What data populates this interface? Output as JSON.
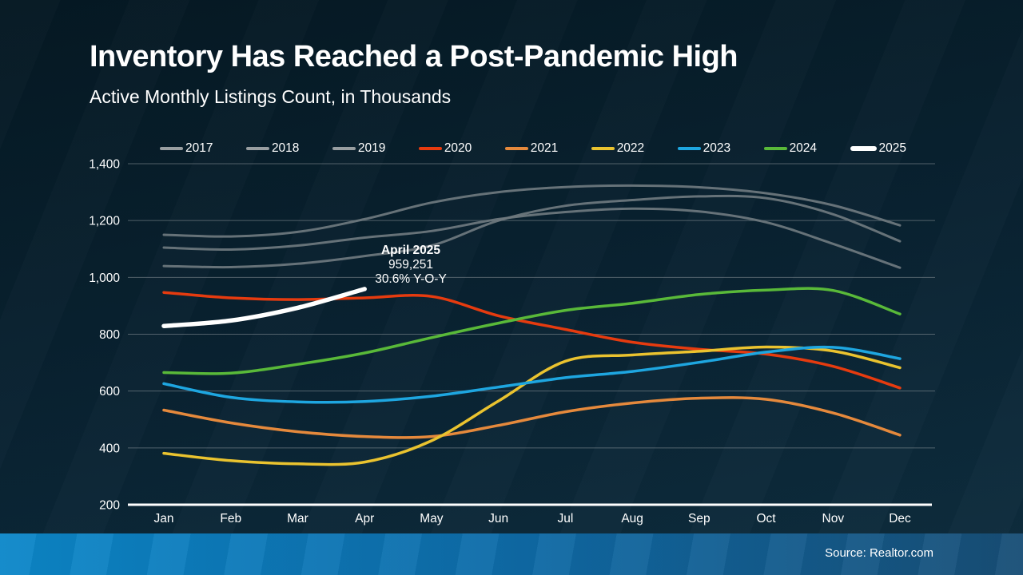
{
  "header": {
    "title": "Inventory Has Reached a Post-Pandemic High",
    "subtitle": "Active Monthly Listings Count, in Thousands"
  },
  "annotation": {
    "title": "April 2025",
    "value": "959,251",
    "yoy": "30.6% Y-O-Y"
  },
  "footer": {
    "source": "Source: Realtor.com"
  },
  "colors": {
    "background_top": "#051823",
    "background_bottom": "#0e2d3e",
    "footer_bar_left": "#0c87c9",
    "footer_bar_right": "#184e76",
    "gridline": "#99a0a5",
    "axis_line": "#ffffff",
    "text": "#ffffff"
  },
  "chart_data": {
    "type": "line",
    "title": "Active Monthly Listings Count, in Thousands",
    "units": "thousands",
    "categories": [
      "Jan",
      "Feb",
      "Mar",
      "Apr",
      "May",
      "Jun",
      "Jul",
      "Aug",
      "Sep",
      "Oct",
      "Nov",
      "Dec"
    ],
    "ylim": [
      200,
      1400
    ],
    "yticks": [
      1400,
      1200,
      1000,
      800,
      600,
      400,
      200
    ],
    "ytick_labels": [
      "1,400",
      "1,200",
      "1,000",
      "800",
      "600",
      "400",
      "200"
    ],
    "grid": true,
    "legend_position": "top",
    "annotation_point": {
      "series": "2025",
      "month": "Apr",
      "value": 959.251
    },
    "series": [
      {
        "name": "2017",
        "color": "#6f797f",
        "swatch": "#989ea1",
        "emphasis": false,
        "values": [
          1150,
          1144,
          1160,
          1205,
          1263,
          1300,
          1318,
          1323,
          1317,
          1296,
          1254,
          1183
        ]
      },
      {
        "name": "2018",
        "color": "#6f797f",
        "swatch": "#989ea1",
        "emphasis": false,
        "values": [
          1040,
          1036,
          1048,
          1075,
          1112,
          1200,
          1252,
          1272,
          1285,
          1279,
          1222,
          1127
        ]
      },
      {
        "name": "2019",
        "color": "#6f797f",
        "swatch": "#989ea1",
        "emphasis": false,
        "values": [
          1105,
          1098,
          1112,
          1140,
          1163,
          1205,
          1230,
          1242,
          1232,
          1194,
          1118,
          1034
        ]
      },
      {
        "name": "2020",
        "color": "#e63b0f",
        "swatch": "#e63b0f",
        "emphasis": false,
        "values": [
          947,
          928,
          922,
          928,
          933,
          865,
          817,
          772,
          747,
          730,
          687,
          611
        ]
      },
      {
        "name": "2021",
        "color": "#e5893c",
        "swatch": "#e5893c",
        "emphasis": false,
        "values": [
          533,
          488,
          457,
          440,
          440,
          479,
          527,
          558,
          575,
          571,
          523,
          445
        ]
      },
      {
        "name": "2022",
        "color": "#eac32f",
        "swatch": "#eac32f",
        "emphasis": false,
        "values": [
          381,
          355,
          344,
          350,
          425,
          565,
          705,
          727,
          740,
          755,
          741,
          682
        ]
      },
      {
        "name": "2023",
        "color": "#1ea6e0",
        "swatch": "#1ea6e0",
        "emphasis": false,
        "values": [
          626,
          578,
          562,
          563,
          582,
          614,
          647,
          669,
          701,
          737,
          754,
          714
        ]
      },
      {
        "name": "2024",
        "color": "#59b939",
        "swatch": "#59b939",
        "emphasis": false,
        "values": [
          665,
          663,
          694,
          734,
          788,
          839,
          884,
          909,
          940,
          955,
          954,
          871
        ]
      },
      {
        "name": "2025",
        "color": "#ffffff",
        "swatch": "#ffffff",
        "emphasis": true,
        "values": [
          829,
          848,
          893,
          959
        ]
      }
    ]
  }
}
